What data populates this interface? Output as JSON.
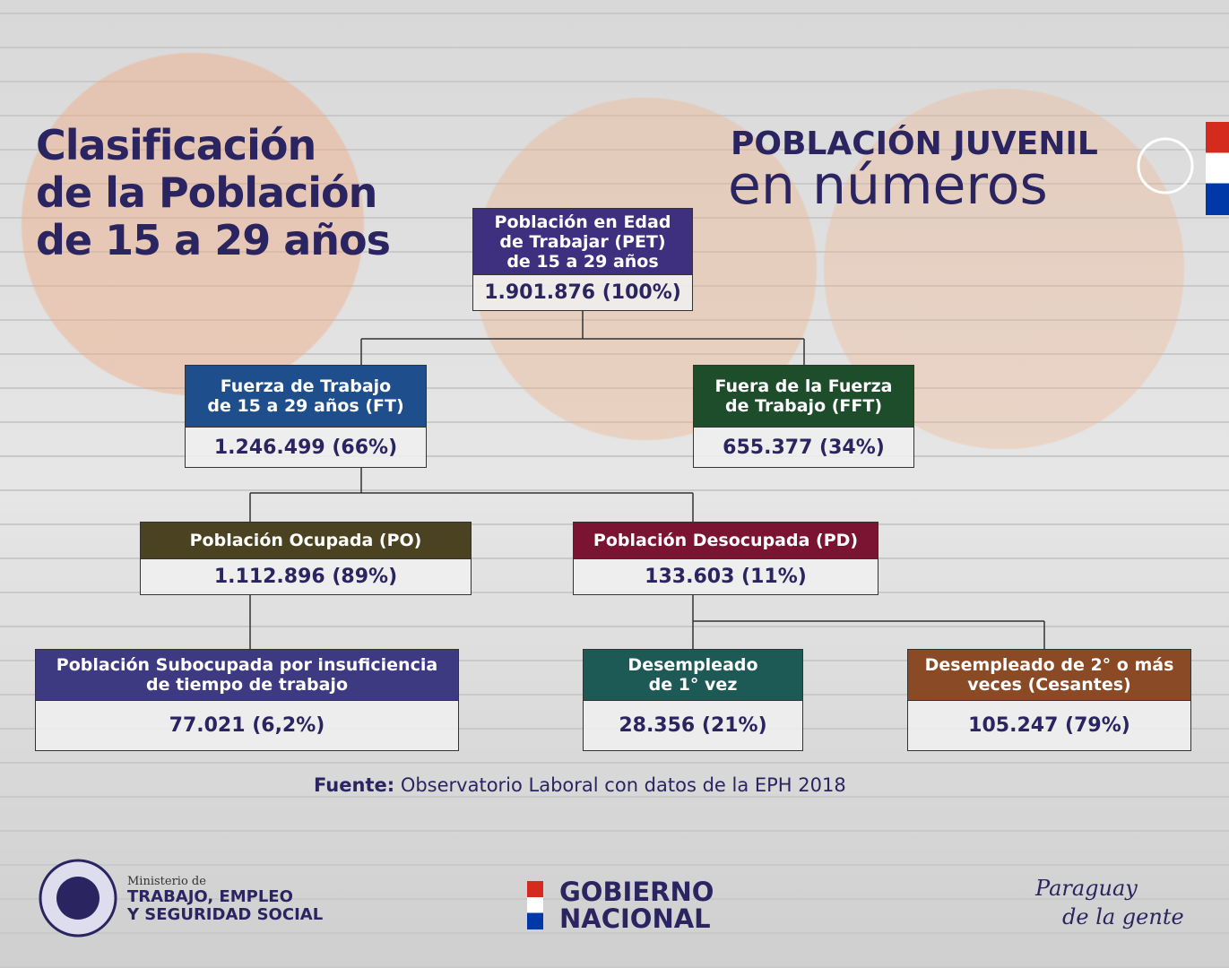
{
  "title": [
    "Clasificación",
    "de la Población",
    "de 15 a 29 años"
  ],
  "header": {
    "line1": "POBLACIÓN JUVENIL",
    "line2": "en números"
  },
  "nodes": [
    {
      "label": [
        "Población en Edad",
        "de Trabajar (PET)",
        "de 15 a 29 años"
      ],
      "value": "1.901.876 (100%)"
    },
    {
      "label": [
        "Fuerza de Trabajo",
        "de 15 a 29 años (FT)"
      ],
      "value": "1.246.499 (66%)"
    },
    {
      "label": [
        "Fuera de la Fuerza",
        "de Trabajo (FFT)"
      ],
      "value": "655.377 (34%)"
    },
    {
      "label": [
        "Población Ocupada (PO)"
      ],
      "value": "1.112.896 (89%)"
    },
    {
      "label": [
        "Población Desocupada (PD)"
      ],
      "value": "133.603 (11%)"
    },
    {
      "label": [
        "Población Subocupada por insuficiencia",
        "de tiempo de trabajo"
      ],
      "value": "77.021 (6,2%)"
    },
    {
      "label": [
        "Desempleado",
        "de 1° vez"
      ],
      "value": "28.356 (21%)"
    },
    {
      "label": [
        "Desempleado de 2° o más",
        "veces (Cesantes)"
      ],
      "value": "105.247 (79%)"
    }
  ],
  "source": {
    "prefix": "Fuente:",
    "text": "Observatorio Laboral con datos de la EPH 2018"
  },
  "footer": {
    "ministry": {
      "small": "Ministerio de",
      "line1": "TRABAJO, EMPLEO",
      "line2": "Y SEGURIDAD SOCIAL"
    },
    "government": [
      "GOBIERNO",
      "NACIONAL"
    ],
    "slogan": [
      "Paraguay",
      "de la gente"
    ]
  }
}
